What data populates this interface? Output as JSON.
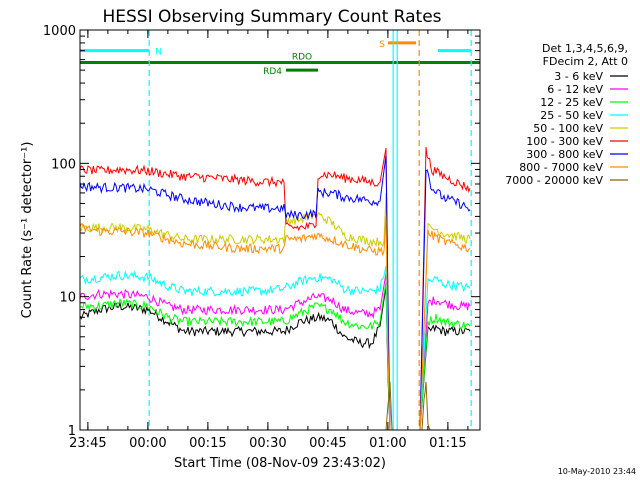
{
  "chart_data": {
    "type": "line",
    "title": "HESSI Observing Summary Count Rates",
    "xlabel": "Start Time (08-Nov-09 23:43:02)",
    "ylabel": "Count Rate (s⁻¹ detector⁻¹)",
    "yscale": "log",
    "ylim": [
      1,
      1000
    ],
    "y_ticks": [
      {
        "value": 1,
        "label": "1"
      },
      {
        "value": 10,
        "label": "10"
      },
      {
        "value": 100,
        "label": "100"
      },
      {
        "value": 1000,
        "label": "1000"
      }
    ],
    "x_unit": "minutes after 23:43:02",
    "xlim": [
      0,
      100
    ],
    "x_ticks": [
      {
        "value": 1.97,
        "label": "23:45"
      },
      {
        "value": 16.97,
        "label": "00:00"
      },
      {
        "value": 31.97,
        "label": "00:15"
      },
      {
        "value": 46.97,
        "label": "00:30"
      },
      {
        "value": 61.97,
        "label": "00:45"
      },
      {
        "value": 76.97,
        "label": "01:00"
      },
      {
        "value": 91.97,
        "label": "01:15"
      }
    ],
    "legend": {
      "placement": "right",
      "header": [
        "Det 1,3,4,5,6,9,",
        "FDecim 2, Att 0"
      ]
    },
    "flags": [
      {
        "label": "N",
        "color": "#00ffff",
        "y_value": 700,
        "segments": [
          [
            0,
            17.3
          ],
          [
            89.5,
            97.8
          ]
        ]
      },
      {
        "label": "S",
        "color": "#ff8c00",
        "y_value": 800,
        "segments": [
          [
            77,
            84
          ]
        ]
      },
      {
        "label": "RDO",
        "color": "#008000",
        "y_value": 570,
        "segments": [
          [
            0,
            100
          ]
        ]
      },
      {
        "label": "RD4",
        "color": "#008000",
        "y_value": 500,
        "segments": [
          [
            51.5,
            59.5
          ]
        ]
      }
    ],
    "vertical_markers": [
      {
        "x": 17.3,
        "color": "#00ffff",
        "style": "dashed"
      },
      {
        "x": 78.3,
        "color": "#00ffff",
        "style": "solid"
      },
      {
        "x": 79.3,
        "color": "#00ffff",
        "style": "solid"
      },
      {
        "x": 84.8,
        "color": "#ff8c00",
        "style": "dashed"
      },
      {
        "x": 97.8,
        "color": "#00ffff",
        "style": "dashed"
      }
    ],
    "series": [
      {
        "name": "3 - 6 keV",
        "color": "#000000",
        "points": [
          [
            0,
            7
          ],
          [
            5,
            8
          ],
          [
            10,
            8.5
          ],
          [
            17,
            8
          ],
          [
            22,
            6.5
          ],
          [
            26,
            5.5
          ],
          [
            33,
            5.5
          ],
          [
            40,
            5.5
          ],
          [
            45,
            5.5
          ],
          [
            51,
            5.5
          ],
          [
            55,
            6.5
          ],
          [
            60,
            7
          ],
          [
            63,
            6.5
          ],
          [
            66,
            5
          ],
          [
            70,
            4.5
          ],
          [
            73,
            4.5
          ],
          [
            75,
            6
          ],
          [
            76.5,
            12
          ],
          [
            77,
            2.5
          ],
          [
            77.5,
            1
          ],
          [
            85,
            1
          ],
          [
            87,
            5.5
          ],
          [
            89,
            5.8
          ],
          [
            91,
            5.5
          ],
          [
            95,
            5.5
          ],
          [
            97.5,
            5.5
          ]
        ]
      },
      {
        "name": "6 - 12 keV",
        "color": "#ff00ff",
        "points": [
          [
            0,
            10
          ],
          [
            5,
            10.5
          ],
          [
            10,
            10.5
          ],
          [
            17,
            10
          ],
          [
            22,
            8.5
          ],
          [
            26,
            8
          ],
          [
            33,
            8
          ],
          [
            40,
            8
          ],
          [
            45,
            8
          ],
          [
            51,
            8
          ],
          [
            55,
            9
          ],
          [
            59,
            10
          ],
          [
            63,
            9.5
          ],
          [
            66,
            8
          ],
          [
            70,
            7.5
          ],
          [
            73,
            7.5
          ],
          [
            75,
            8
          ],
          [
            76.5,
            15
          ],
          [
            77,
            3
          ],
          [
            77.5,
            1
          ],
          [
            85,
            1
          ],
          [
            87,
            9
          ],
          [
            89,
            9.5
          ],
          [
            91,
            9
          ],
          [
            95,
            8.5
          ],
          [
            97.5,
            8.5
          ]
        ]
      },
      {
        "name": "12 - 25 keV",
        "color": "#00ff00",
        "points": [
          [
            0,
            8.5
          ],
          [
            5,
            8.5
          ],
          [
            10,
            9
          ],
          [
            17,
            8.5
          ],
          [
            22,
            7
          ],
          [
            26,
            6.5
          ],
          [
            33,
            6.5
          ],
          [
            40,
            6.5
          ],
          [
            45,
            6.5
          ],
          [
            51,
            6.5
          ],
          [
            55,
            7.5
          ],
          [
            59,
            8.5
          ],
          [
            63,
            8
          ],
          [
            66,
            6.5
          ],
          [
            70,
            6
          ],
          [
            73,
            6
          ],
          [
            75,
            6.5
          ],
          [
            76.5,
            13
          ],
          [
            77,
            2.8
          ],
          [
            77.5,
            1
          ],
          [
            85,
            1
          ],
          [
            87,
            6.5
          ],
          [
            89,
            7
          ],
          [
            91,
            6.5
          ],
          [
            95,
            6.2
          ],
          [
            97.5,
            6
          ]
        ]
      },
      {
        "name": "25 - 50 keV",
        "color": "#00ffff",
        "points": [
          [
            0,
            13.5
          ],
          [
            5,
            14
          ],
          [
            10,
            14.5
          ],
          [
            17,
            14
          ],
          [
            22,
            12
          ],
          [
            26,
            11
          ],
          [
            33,
            11
          ],
          [
            40,
            11
          ],
          [
            45,
            11
          ],
          [
            51,
            11.5
          ],
          [
            55,
            13
          ],
          [
            59,
            14
          ],
          [
            63,
            13.5
          ],
          [
            66,
            11.5
          ],
          [
            70,
            11
          ],
          [
            73,
            11
          ],
          [
            75,
            11.5
          ],
          [
            76.5,
            17
          ],
          [
            77,
            3.5
          ],
          [
            77.5,
            1
          ],
          [
            85,
            1
          ],
          [
            87,
            13
          ],
          [
            89,
            13.5
          ],
          [
            91,
            12.5
          ],
          [
            95,
            12
          ],
          [
            97.5,
            11.5
          ]
        ]
      },
      {
        "name": "50 - 100 keV",
        "color": "#cccc00",
        "points": [
          [
            0,
            33
          ],
          [
            5,
            33
          ],
          [
            10,
            33
          ],
          [
            17,
            32
          ],
          [
            22,
            29
          ],
          [
            26,
            27
          ],
          [
            33,
            27
          ],
          [
            40,
            27
          ],
          [
            45,
            27
          ],
          [
            51,
            27
          ],
          [
            51.5,
            37
          ],
          [
            55,
            38
          ],
          [
            59,
            42
          ],
          [
            63,
            36
          ],
          [
            66,
            29
          ],
          [
            70,
            27
          ],
          [
            73,
            26
          ],
          [
            76,
            26
          ],
          [
            76.5,
            60
          ],
          [
            77,
            5
          ],
          [
            77.5,
            1
          ],
          [
            85,
            1
          ],
          [
            87,
            33
          ],
          [
            89,
            32
          ],
          [
            91,
            30
          ],
          [
            95,
            28
          ],
          [
            97.5,
            27
          ]
        ]
      },
      {
        "name": "100 - 300 keV",
        "color": "#ff0000",
        "points": [
          [
            0,
            90
          ],
          [
            5,
            88
          ],
          [
            10,
            90
          ],
          [
            17,
            88
          ],
          [
            22,
            83
          ],
          [
            26,
            80
          ],
          [
            33,
            78
          ],
          [
            40,
            75
          ],
          [
            45,
            73
          ],
          [
            51,
            72
          ],
          [
            51.5,
            33
          ],
          [
            55,
            33
          ],
          [
            59,
            34
          ],
          [
            59.5,
            83
          ],
          [
            63,
            82
          ],
          [
            66,
            78
          ],
          [
            70,
            75
          ],
          [
            73,
            72
          ],
          [
            75,
            72
          ],
          [
            76.5,
            130
          ],
          [
            77,
            10
          ],
          [
            77.5,
            1
          ],
          [
            85,
            1
          ],
          [
            86.5,
            125
          ],
          [
            88,
            90
          ],
          [
            91,
            80
          ],
          [
            95,
            70
          ],
          [
            97.5,
            65
          ]
        ]
      },
      {
        "name": "300 - 800 keV",
        "color": "#0000ff",
        "points": [
          [
            0,
            68
          ],
          [
            5,
            66
          ],
          [
            10,
            66
          ],
          [
            17,
            64
          ],
          [
            22,
            58
          ],
          [
            26,
            54
          ],
          [
            33,
            50
          ],
          [
            40,
            47
          ],
          [
            45,
            46
          ],
          [
            51,
            46
          ],
          [
            51.5,
            41
          ],
          [
            55,
            41
          ],
          [
            59,
            42
          ],
          [
            59.5,
            61
          ],
          [
            63,
            60
          ],
          [
            66,
            56
          ],
          [
            70,
            54
          ],
          [
            73,
            52
          ],
          [
            75,
            52
          ],
          [
            76.5,
            115
          ],
          [
            77,
            8
          ],
          [
            77.5,
            1
          ],
          [
            85,
            1
          ],
          [
            86.5,
            95
          ],
          [
            88,
            65
          ],
          [
            91,
            55
          ],
          [
            95,
            50
          ],
          [
            97.5,
            45
          ]
        ]
      },
      {
        "name": "800 - 7000 keV",
        "color": "#ff8c00",
        "points": [
          [
            0,
            33
          ],
          [
            5,
            31
          ],
          [
            10,
            31
          ],
          [
            17,
            30
          ],
          [
            22,
            27
          ],
          [
            26,
            25
          ],
          [
            33,
            24
          ],
          [
            40,
            23
          ],
          [
            45,
            23
          ],
          [
            51,
            23
          ],
          [
            51.5,
            27
          ],
          [
            55,
            27
          ],
          [
            59,
            29
          ],
          [
            63,
            27
          ],
          [
            66,
            25
          ],
          [
            70,
            23
          ],
          [
            73,
            22
          ],
          [
            76,
            22
          ],
          [
            76.5,
            40
          ],
          [
            77,
            4
          ],
          [
            77.5,
            1
          ],
          [
            85,
            1
          ],
          [
            87,
            30
          ],
          [
            89,
            28
          ],
          [
            91,
            26
          ],
          [
            95,
            24
          ],
          [
            97.5,
            23
          ]
        ]
      },
      {
        "name": "7000 - 20000 keV",
        "color": "#8b6508",
        "points": [
          [
            76.5,
            1
          ],
          [
            77,
            1.5
          ],
          [
            77.5,
            2.3
          ],
          [
            78,
            1
          ],
          [
            85.5,
            1
          ],
          [
            86,
            1.7
          ],
          [
            86.5,
            2.3
          ],
          [
            87,
            1.1
          ],
          [
            87.5,
            1
          ]
        ]
      }
    ]
  },
  "timestamp": "10-May-2010 23:44"
}
